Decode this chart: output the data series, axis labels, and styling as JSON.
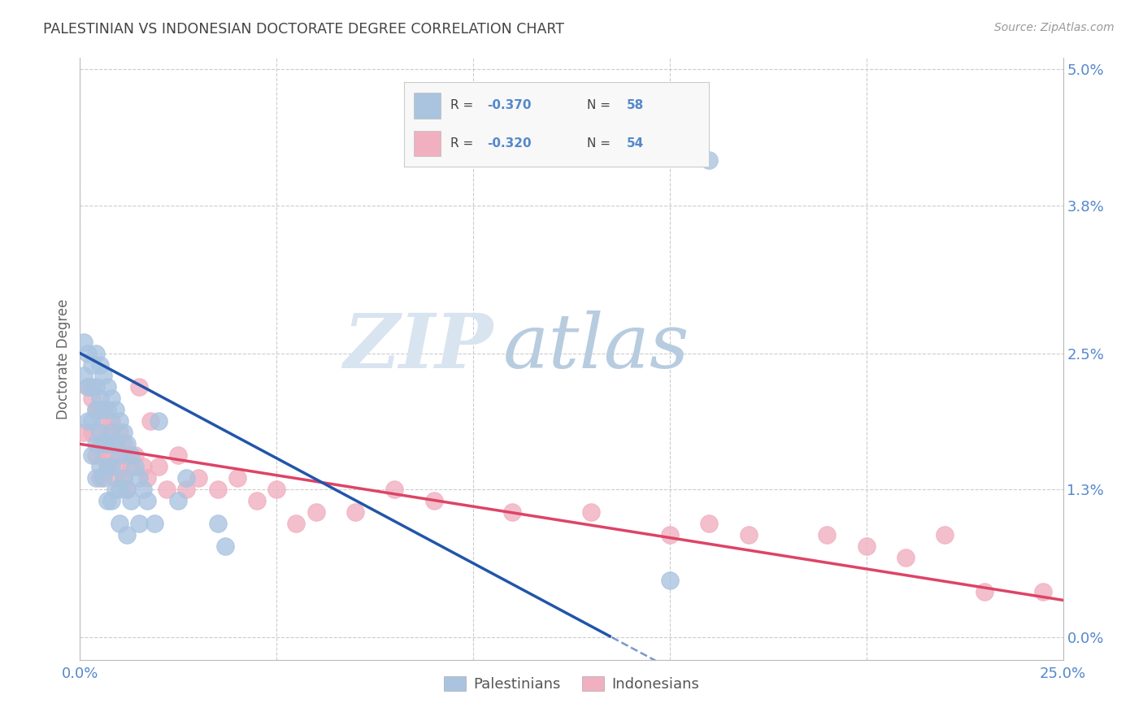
{
  "title": "PALESTINIAN VS INDONESIAN DOCTORATE DEGREE CORRELATION CHART",
  "source": "Source: ZipAtlas.com",
  "ylabel": "Doctorate Degree",
  "xlim": [
    0.0,
    0.25
  ],
  "ylim": [
    -0.005,
    0.052
  ],
  "plot_ylim": [
    0.0,
    0.05
  ],
  "xtick_positions": [
    0.0,
    0.25
  ],
  "xtick_labels": [
    "0.0%",
    "25.0%"
  ],
  "ytick_positions": [
    0.0,
    0.013,
    0.025,
    0.038,
    0.05
  ],
  "ytick_labels_right": [
    "0.0%",
    "1.3%",
    "2.5%",
    "3.8%",
    "5.0%"
  ],
  "background_color": "#ffffff",
  "grid_color": "#cccccc",
  "axis_color": "#5588cc",
  "watermark_zip": "ZIP",
  "watermark_atlas": "atlas",
  "watermark_zip_color": "#d8e4f0",
  "watermark_atlas_color": "#b8cce0",
  "legend_line1": "R = -0.370   N = 58",
  "legend_line2": "R = -0.320   N = 54",
  "legend_R1": "-0.370",
  "legend_N1": "58",
  "legend_R2": "-0.320",
  "legend_N2": "54",
  "legend_label1": "Palestinians",
  "legend_label2": "Indonesians",
  "blue_color": "#aac4e0",
  "pink_color": "#f0b0c0",
  "blue_line_color": "#2255aa",
  "pink_line_color": "#dd4466",
  "blue_intercept": 0.025,
  "blue_slope": -0.185,
  "pink_intercept": 0.017,
  "pink_slope": -0.055,
  "palestinians_x": [
    0.001,
    0.001,
    0.002,
    0.002,
    0.002,
    0.003,
    0.003,
    0.003,
    0.003,
    0.004,
    0.004,
    0.004,
    0.004,
    0.004,
    0.005,
    0.005,
    0.005,
    0.005,
    0.006,
    0.006,
    0.006,
    0.006,
    0.007,
    0.007,
    0.007,
    0.007,
    0.007,
    0.008,
    0.008,
    0.008,
    0.008,
    0.009,
    0.009,
    0.009,
    0.01,
    0.01,
    0.01,
    0.01,
    0.011,
    0.011,
    0.012,
    0.012,
    0.012,
    0.013,
    0.013,
    0.014,
    0.015,
    0.015,
    0.016,
    0.017,
    0.019,
    0.02,
    0.025,
    0.027,
    0.035,
    0.037,
    0.15,
    0.16
  ],
  "palestinians_y": [
    0.026,
    0.023,
    0.025,
    0.022,
    0.019,
    0.024,
    0.022,
    0.019,
    0.016,
    0.025,
    0.022,
    0.02,
    0.017,
    0.014,
    0.024,
    0.021,
    0.018,
    0.015,
    0.023,
    0.02,
    0.017,
    0.014,
    0.022,
    0.02,
    0.017,
    0.015,
    0.012,
    0.021,
    0.018,
    0.015,
    0.012,
    0.02,
    0.017,
    0.013,
    0.019,
    0.016,
    0.013,
    0.01,
    0.018,
    0.014,
    0.017,
    0.013,
    0.009,
    0.016,
    0.012,
    0.015,
    0.014,
    0.01,
    0.013,
    0.012,
    0.01,
    0.019,
    0.012,
    0.014,
    0.01,
    0.008,
    0.005,
    0.042
  ],
  "indonesians_x": [
    0.001,
    0.002,
    0.003,
    0.003,
    0.004,
    0.004,
    0.005,
    0.005,
    0.005,
    0.006,
    0.006,
    0.007,
    0.007,
    0.008,
    0.008,
    0.009,
    0.009,
    0.01,
    0.01,
    0.011,
    0.011,
    0.012,
    0.012,
    0.013,
    0.014,
    0.015,
    0.016,
    0.017,
    0.018,
    0.02,
    0.022,
    0.025,
    0.027,
    0.03,
    0.035,
    0.04,
    0.045,
    0.05,
    0.055,
    0.06,
    0.07,
    0.08,
    0.09,
    0.11,
    0.13,
    0.15,
    0.16,
    0.17,
    0.19,
    0.2,
    0.21,
    0.22,
    0.23,
    0.245
  ],
  "indonesians_y": [
    0.018,
    0.022,
    0.021,
    0.018,
    0.02,
    0.016,
    0.02,
    0.017,
    0.014,
    0.019,
    0.016,
    0.018,
    0.015,
    0.019,
    0.016,
    0.017,
    0.014,
    0.018,
    0.015,
    0.017,
    0.014,
    0.016,
    0.013,
    0.015,
    0.016,
    0.022,
    0.015,
    0.014,
    0.019,
    0.015,
    0.013,
    0.016,
    0.013,
    0.014,
    0.013,
    0.014,
    0.012,
    0.013,
    0.01,
    0.011,
    0.011,
    0.013,
    0.012,
    0.011,
    0.011,
    0.009,
    0.01,
    0.009,
    0.009,
    0.008,
    0.007,
    0.009,
    0.004,
    0.004
  ]
}
